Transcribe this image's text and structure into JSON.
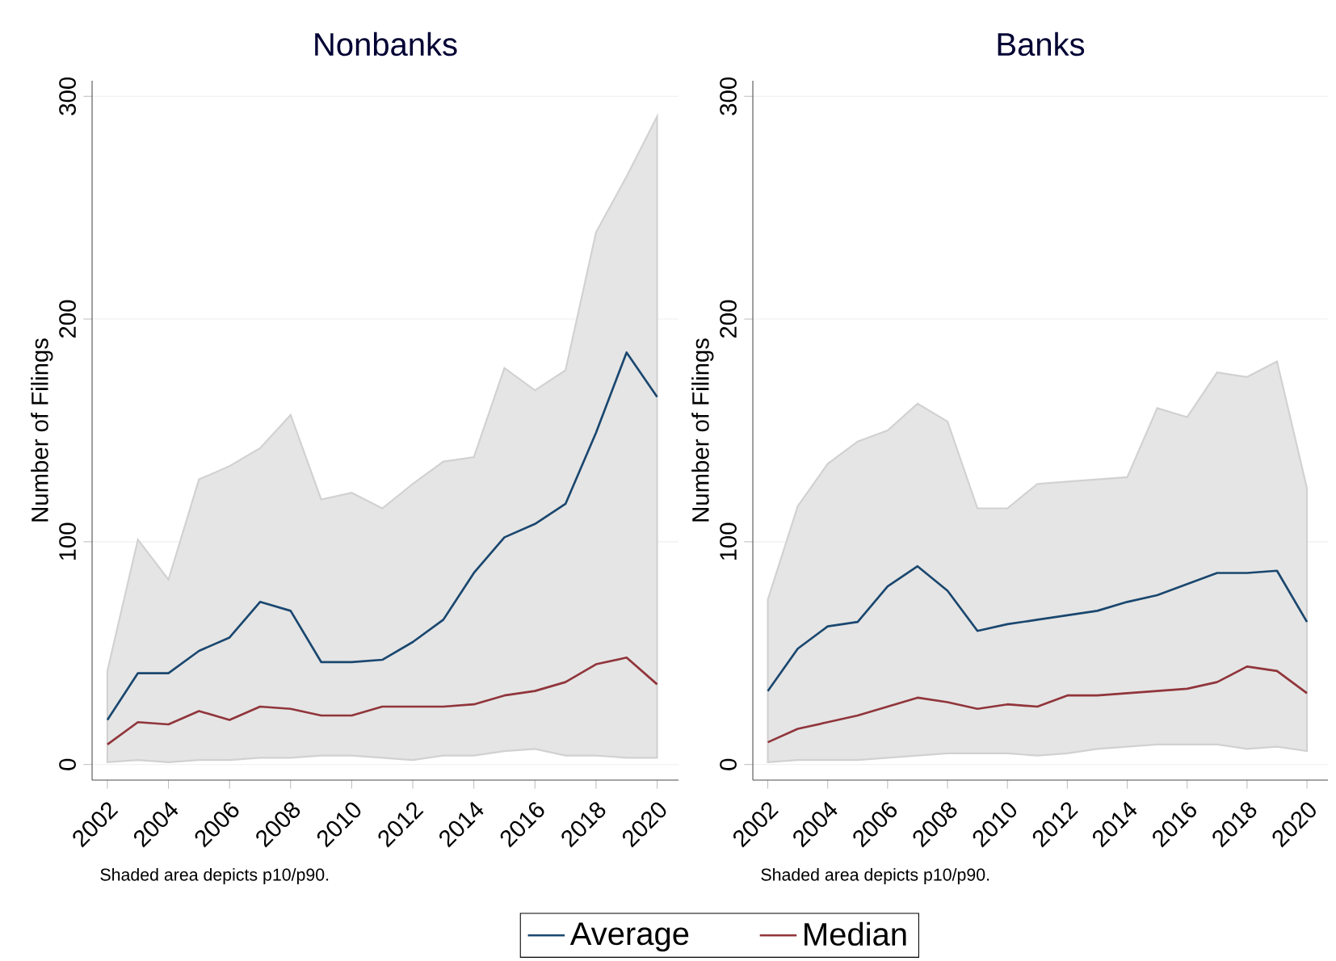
{
  "chart_data": [
    {
      "type": "line",
      "title": "Nonbanks",
      "ylabel": "Number of Filings",
      "x": [
        2002,
        2003,
        2004,
        2005,
        2006,
        2007,
        2008,
        2009,
        2010,
        2011,
        2012,
        2013,
        2014,
        2015,
        2016,
        2017,
        2018,
        2019,
        2020
      ],
      "series": [
        {
          "name": "Average",
          "color": "#1a476f",
          "values": [
            20,
            41,
            41,
            51,
            57,
            73,
            69,
            46,
            46,
            47,
            55,
            65,
            86,
            102,
            108,
            117,
            149,
            185,
            165
          ],
          "lower": [
            1,
            2,
            1,
            2,
            2,
            3,
            3,
            4,
            4,
            3,
            2,
            4,
            4,
            6,
            7,
            4,
            4,
            3,
            3
          ],
          "upper": [
            42,
            101,
            83,
            128,
            134,
            142,
            157,
            119,
            122,
            115,
            126,
            136,
            138,
            178,
            168,
            177,
            239,
            264,
            291
          ]
        },
        {
          "name": "Median",
          "color": "#90353b",
          "values": [
            9,
            19,
            18,
            24,
            20,
            26,
            25,
            22,
            22,
            26,
            26,
            26,
            27,
            31,
            33,
            37,
            45,
            48,
            36
          ]
        }
      ],
      "xlim": [
        2001.5,
        2020.7
      ],
      "ylim": [
        -7,
        307
      ],
      "xticks": [
        2002,
        2004,
        2006,
        2008,
        2010,
        2012,
        2014,
        2016,
        2018,
        2020
      ],
      "yticks": [
        0,
        100,
        200,
        300
      ],
      "grid": "y",
      "legend": "bottom",
      "annotations": [
        "Shaded area depicts p10/p90."
      ]
    },
    {
      "type": "line",
      "title": "Banks",
      "ylabel": "Number of Filings",
      "x": [
        2002,
        2003,
        2004,
        2005,
        2006,
        2007,
        2008,
        2009,
        2010,
        2011,
        2012,
        2013,
        2014,
        2015,
        2016,
        2017,
        2018,
        2019,
        2020
      ],
      "series": [
        {
          "color": "#1a476f",
          "values": [
            33,
            52,
            62,
            64,
            80,
            89,
            78,
            60,
            63,
            65,
            67,
            69,
            73,
            76,
            81,
            86,
            86,
            87,
            64
          ],
          "lower": [
            1,
            2,
            2,
            2,
            3,
            4,
            5,
            5,
            5,
            4,
            5,
            7,
            8,
            9,
            9,
            9,
            7,
            8,
            6
          ],
          "upper": [
            74,
            116,
            135,
            145,
            150,
            162,
            154,
            115,
            115,
            126,
            127,
            128,
            129,
            160,
            156,
            176,
            174,
            181,
            124
          ]
        },
        {
          "color": "#90353b",
          "values": [
            10,
            16,
            19,
            22,
            26,
            30,
            28,
            25,
            27,
            26,
            31,
            31,
            32,
            33,
            34,
            37,
            44,
            42,
            32
          ]
        }
      ],
      "xlim": [
        2001.5,
        2020.7
      ],
      "ylim": [
        -7,
        307
      ],
      "xticks": [
        2002,
        2004,
        2006,
        2008,
        2010,
        2012,
        2014,
        2016,
        2018,
        2020
      ],
      "yticks": [
        0,
        100,
        200,
        300
      ],
      "grid": "y",
      "annotations": [
        "Shaded area depicts p10/p90."
      ]
    }
  ]
}
